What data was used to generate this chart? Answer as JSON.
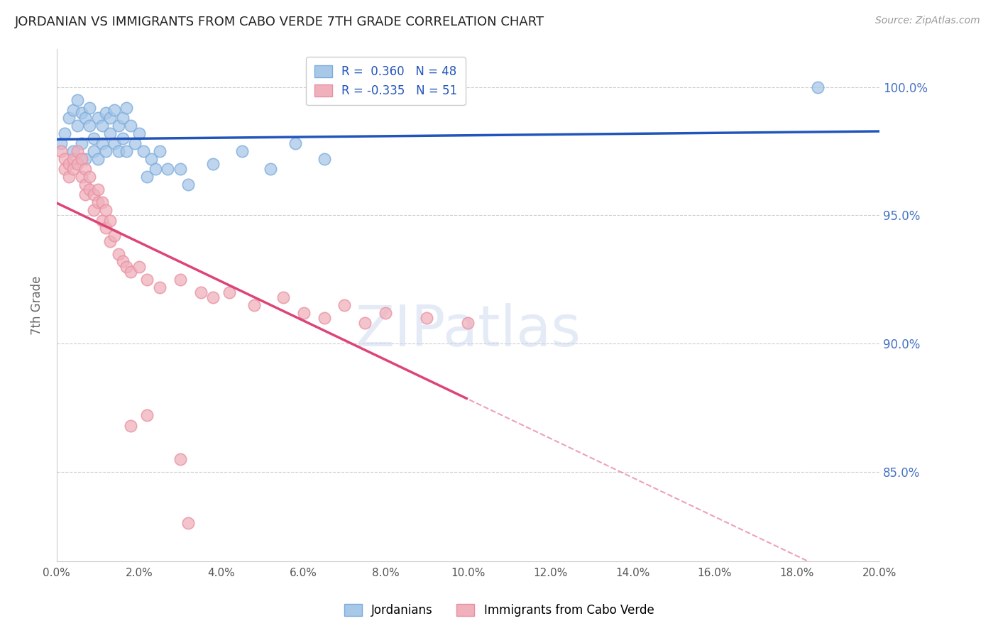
{
  "title": "JORDANIAN VS IMMIGRANTS FROM CABO VERDE 7TH GRADE CORRELATION CHART",
  "source_text": "Source: ZipAtlas.com",
  "ylabel": "7th Grade",
  "watermark": "ZIPatlas",
  "xlim": [
    0.0,
    0.2
  ],
  "ylim": [
    0.815,
    1.015
  ],
  "xticks": [
    0.0,
    0.02,
    0.04,
    0.06,
    0.08,
    0.1,
    0.12,
    0.14,
    0.16,
    0.18,
    0.2
  ],
  "yticks": [
    0.85,
    0.9,
    0.95,
    1.0
  ],
  "legend_labels": [
    "Jordanians",
    "Immigrants from Cabo Verde"
  ],
  "blue_r": 0.36,
  "blue_n": 48,
  "pink_r": -0.335,
  "pink_n": 51,
  "blue_color": "#a8c8e8",
  "pink_color": "#f0b0bc",
  "blue_edge_color": "#7aabdc",
  "pink_edge_color": "#e890a0",
  "blue_line_color": "#2255bb",
  "pink_line_color": "#dd4477",
  "right_label_color": "#4472c4",
  "title_color": "#222222",
  "blue_scatter_x": [
    0.001,
    0.002,
    0.003,
    0.004,
    0.004,
    0.005,
    0.005,
    0.006,
    0.006,
    0.007,
    0.007,
    0.008,
    0.008,
    0.009,
    0.009,
    0.01,
    0.01,
    0.011,
    0.011,
    0.012,
    0.012,
    0.013,
    0.013,
    0.014,
    0.014,
    0.015,
    0.015,
    0.016,
    0.016,
    0.017,
    0.017,
    0.018,
    0.019,
    0.02,
    0.021,
    0.022,
    0.023,
    0.024,
    0.025,
    0.027,
    0.03,
    0.032,
    0.038,
    0.045,
    0.052,
    0.058,
    0.065,
    0.185
  ],
  "blue_scatter_y": [
    0.978,
    0.982,
    0.988,
    0.991,
    0.975,
    0.985,
    0.995,
    0.99,
    0.978,
    0.988,
    0.972,
    0.985,
    0.992,
    0.98,
    0.975,
    0.988,
    0.972,
    0.985,
    0.978,
    0.99,
    0.975,
    0.982,
    0.988,
    0.978,
    0.991,
    0.985,
    0.975,
    0.988,
    0.98,
    0.975,
    0.992,
    0.985,
    0.978,
    0.982,
    0.975,
    0.965,
    0.972,
    0.968,
    0.975,
    0.968,
    0.968,
    0.962,
    0.97,
    0.975,
    0.968,
    0.978,
    0.972,
    1.0
  ],
  "pink_scatter_x": [
    0.001,
    0.002,
    0.002,
    0.003,
    0.003,
    0.004,
    0.004,
    0.005,
    0.005,
    0.006,
    0.006,
    0.007,
    0.007,
    0.007,
    0.008,
    0.008,
    0.009,
    0.009,
    0.01,
    0.01,
    0.011,
    0.011,
    0.012,
    0.012,
    0.013,
    0.013,
    0.014,
    0.015,
    0.016,
    0.017,
    0.018,
    0.02,
    0.022,
    0.025,
    0.03,
    0.035,
    0.038,
    0.042,
    0.048,
    0.055,
    0.06,
    0.065,
    0.07,
    0.075,
    0.08,
    0.09,
    0.1,
    0.018,
    0.022,
    0.03,
    0.032
  ],
  "pink_scatter_y": [
    0.975,
    0.972,
    0.968,
    0.97,
    0.965,
    0.972,
    0.968,
    0.975,
    0.97,
    0.972,
    0.965,
    0.968,
    0.962,
    0.958,
    0.965,
    0.96,
    0.958,
    0.952,
    0.96,
    0.955,
    0.955,
    0.948,
    0.952,
    0.945,
    0.948,
    0.94,
    0.942,
    0.935,
    0.932,
    0.93,
    0.928,
    0.93,
    0.925,
    0.922,
    0.925,
    0.92,
    0.918,
    0.92,
    0.915,
    0.918,
    0.912,
    0.91,
    0.915,
    0.908,
    0.912,
    0.91,
    0.908,
    0.868,
    0.872,
    0.855,
    0.83
  ]
}
